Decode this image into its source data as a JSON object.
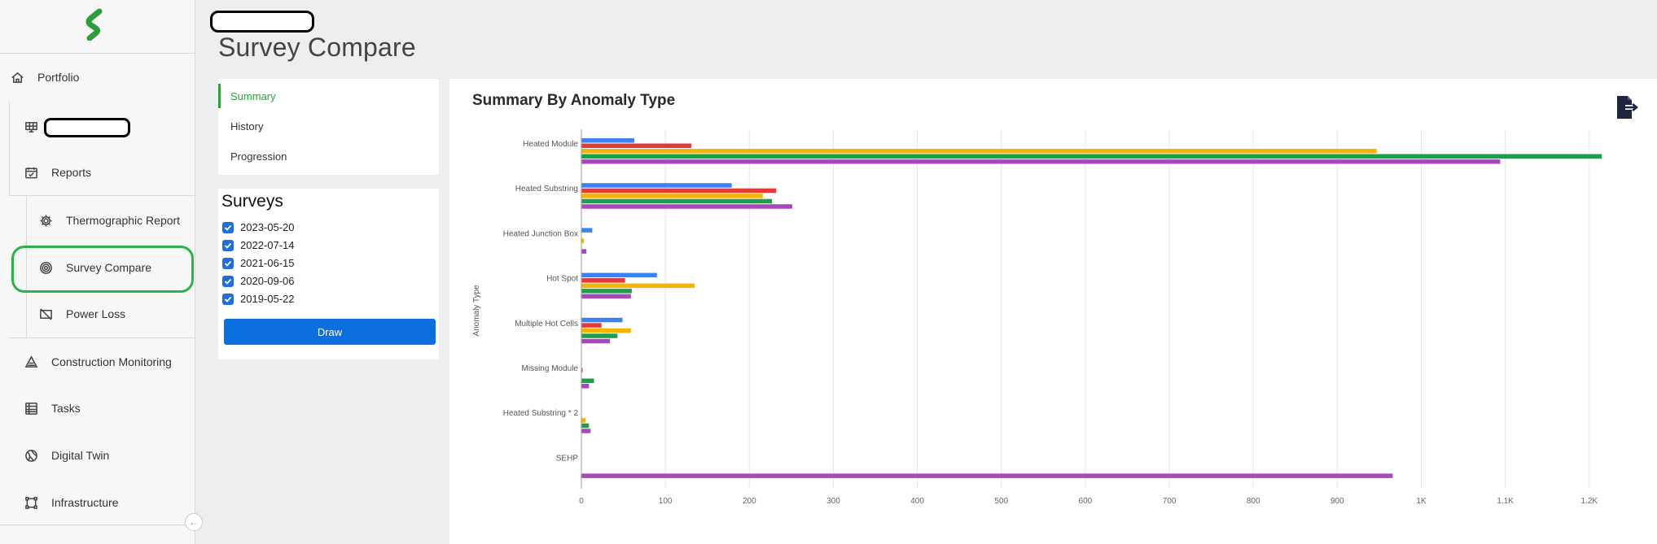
{
  "sidebar": {
    "items": [
      {
        "label": "Portfolio",
        "icon": "home-icon"
      },
      {
        "label": "",
        "icon": "solar-panel-icon"
      },
      {
        "label": "Reports",
        "icon": "calendar-check-icon"
      },
      {
        "label": "Thermographic Report",
        "icon": "gear-icon"
      },
      {
        "label": "Survey Compare",
        "icon": "target-icon"
      },
      {
        "label": "Power Loss",
        "icon": "panel-off-icon"
      },
      {
        "label": "Construction Monitoring",
        "icon": "construction-icon"
      },
      {
        "label": "Tasks",
        "icon": "tasks-icon"
      },
      {
        "label": "Digital Twin",
        "icon": "globe-icon"
      },
      {
        "label": "Infrastructure",
        "icon": "infrastructure-icon"
      }
    ],
    "collapse_icon": "arrow-left-icon"
  },
  "header": {
    "title": "Survey Compare"
  },
  "tabs": [
    {
      "label": "Summary",
      "active": true
    },
    {
      "label": "History",
      "active": false
    },
    {
      "label": "Progression",
      "active": false
    }
  ],
  "surveys": {
    "title": "Surveys",
    "items": [
      {
        "date": "2023-05-20",
        "checked": true
      },
      {
        "date": "2022-07-14",
        "checked": true
      },
      {
        "date": "2021-06-15",
        "checked": true
      },
      {
        "date": "2020-09-06",
        "checked": true
      },
      {
        "date": "2019-05-22",
        "checked": true
      }
    ],
    "draw_label": "Draw"
  },
  "chart_title": "Summary By Anomaly Type",
  "export_icon": "export-file-icon",
  "colors": {
    "accent": "#2e9e3d",
    "primary_button": "#0b6fdc",
    "series": [
      "#3b82f6",
      "#e53935",
      "#f4b400",
      "#1e9e4a",
      "#ab47bc"
    ]
  },
  "chart_data": {
    "type": "bar",
    "orientation": "horizontal",
    "title": "Summary By Anomaly Type",
    "ylabel": "Anomaly Type",
    "xlabel": "",
    "categories": [
      "Heated Module",
      "Heated Substring",
      "Heated Junction Box",
      "Hot Spot",
      "Multiple Hot Cells",
      "Missing Module",
      "Heated Substring * 2",
      "SEHP"
    ],
    "series": [
      {
        "values": [
          63,
          179,
          13,
          90,
          49,
          0,
          0,
          0
        ]
      },
      {
        "values": [
          131,
          232,
          0,
          52,
          24,
          1,
          0,
          0
        ]
      },
      {
        "values": [
          947,
          216,
          3,
          135,
          59,
          0,
          5,
          0
        ]
      },
      {
        "values": [
          1215,
          227,
          0,
          60,
          43,
          15,
          9,
          0
        ]
      },
      {
        "values": [
          1094,
          251,
          6,
          59,
          34,
          9,
          11,
          966
        ]
      }
    ],
    "xlim": [
      0,
      1250
    ],
    "xticks": [
      0,
      100,
      200,
      300,
      400,
      500,
      600,
      700,
      800,
      900,
      1000,
      1100,
      1200
    ],
    "xtick_labels": [
      "0",
      "100",
      "200",
      "300",
      "400",
      "500",
      "600",
      "700",
      "800",
      "900",
      "1K",
      "1.1K",
      "1.2K"
    ],
    "grid": true,
    "legend": "none"
  }
}
